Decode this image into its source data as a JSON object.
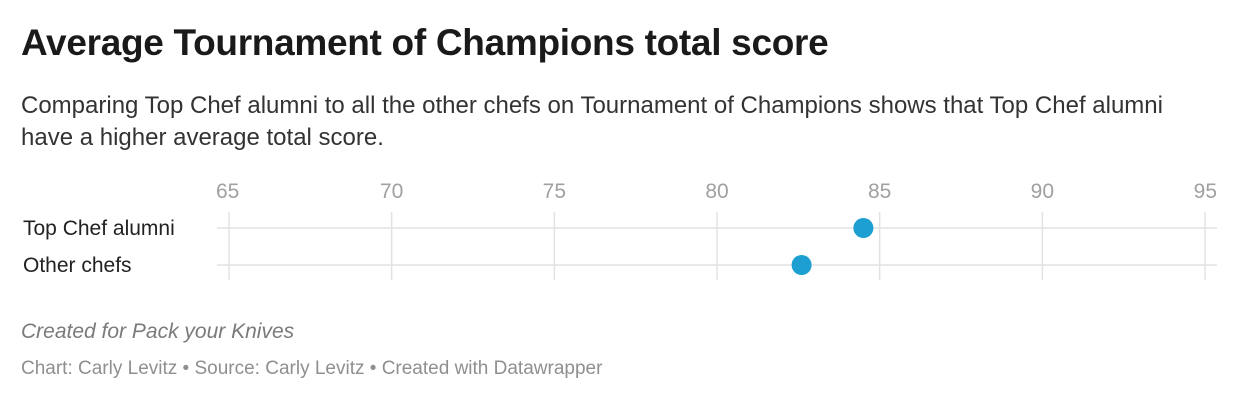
{
  "header": {
    "title": "Average Tournament of Champions total score",
    "subtitle": "Comparing Top Chef alumni to all the other chefs on Tournament of Champions shows that Top Chef alumni have a higher average total score."
  },
  "chart_data": {
    "type": "scatter",
    "title": "Average Tournament of Champions total score",
    "xlim": [
      65,
      95
    ],
    "x_ticks": [
      65,
      70,
      75,
      80,
      85,
      90,
      95
    ],
    "grid": true,
    "categories": [
      "Top Chef alumni",
      "Other chefs"
    ],
    "values": [
      84.5,
      82.6
    ],
    "dot_color": "#1d9fd1"
  },
  "footer": {
    "notes": "Created for Pack your Knives",
    "credits": "Chart: Carly Levitz • Source: Carly Levitz • Created with Datawrapper"
  }
}
